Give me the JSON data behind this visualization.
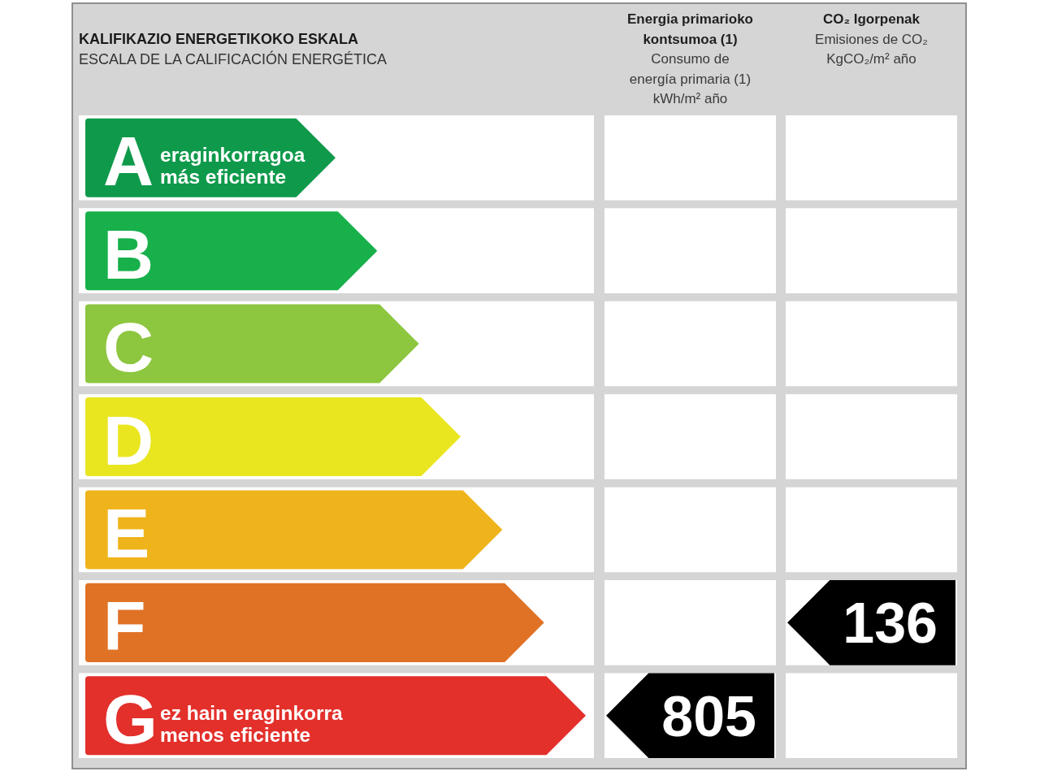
{
  "chart_data": {
    "type": "other",
    "title": "KALIFIKAZIO ENERGETIKOKO ESKALA",
    "subtitle": "ESCALA DE LA CALIFICACIÓN ENERGÉTICA",
    "categories": [
      "A",
      "B",
      "C",
      "D",
      "E",
      "F",
      "G"
    ],
    "colors": [
      "#0f9a4b",
      "#17b04b",
      "#8dc63f",
      "#e9e620",
      "#efb41c",
      "#e07226",
      "#e3302b"
    ],
    "series": [
      {
        "color": "#000000",
        "values": [
          null,
          null,
          null,
          null,
          null,
          null,
          805
        ]
      },
      {
        "color": "#000000",
        "values": [
          null,
          null,
          null,
          null,
          null,
          136,
          null
        ]
      }
    ],
    "data_labels": true,
    "annotations": [
      {
        "text": "eraginkorragoa\nmás eficiente",
        "y": "A"
      },
      {
        "text": "ez hain eraginkorra\nmenos eficiente",
        "y": "G"
      },
      "Energia primarioko kontsumoa (1)\nConsumo de\nenergía primaria (1)\nkWh/m² año",
      "CO₂ Igorpenak\nEmisiones de CO₂\nKgCO₂/m² año"
    ]
  }
}
